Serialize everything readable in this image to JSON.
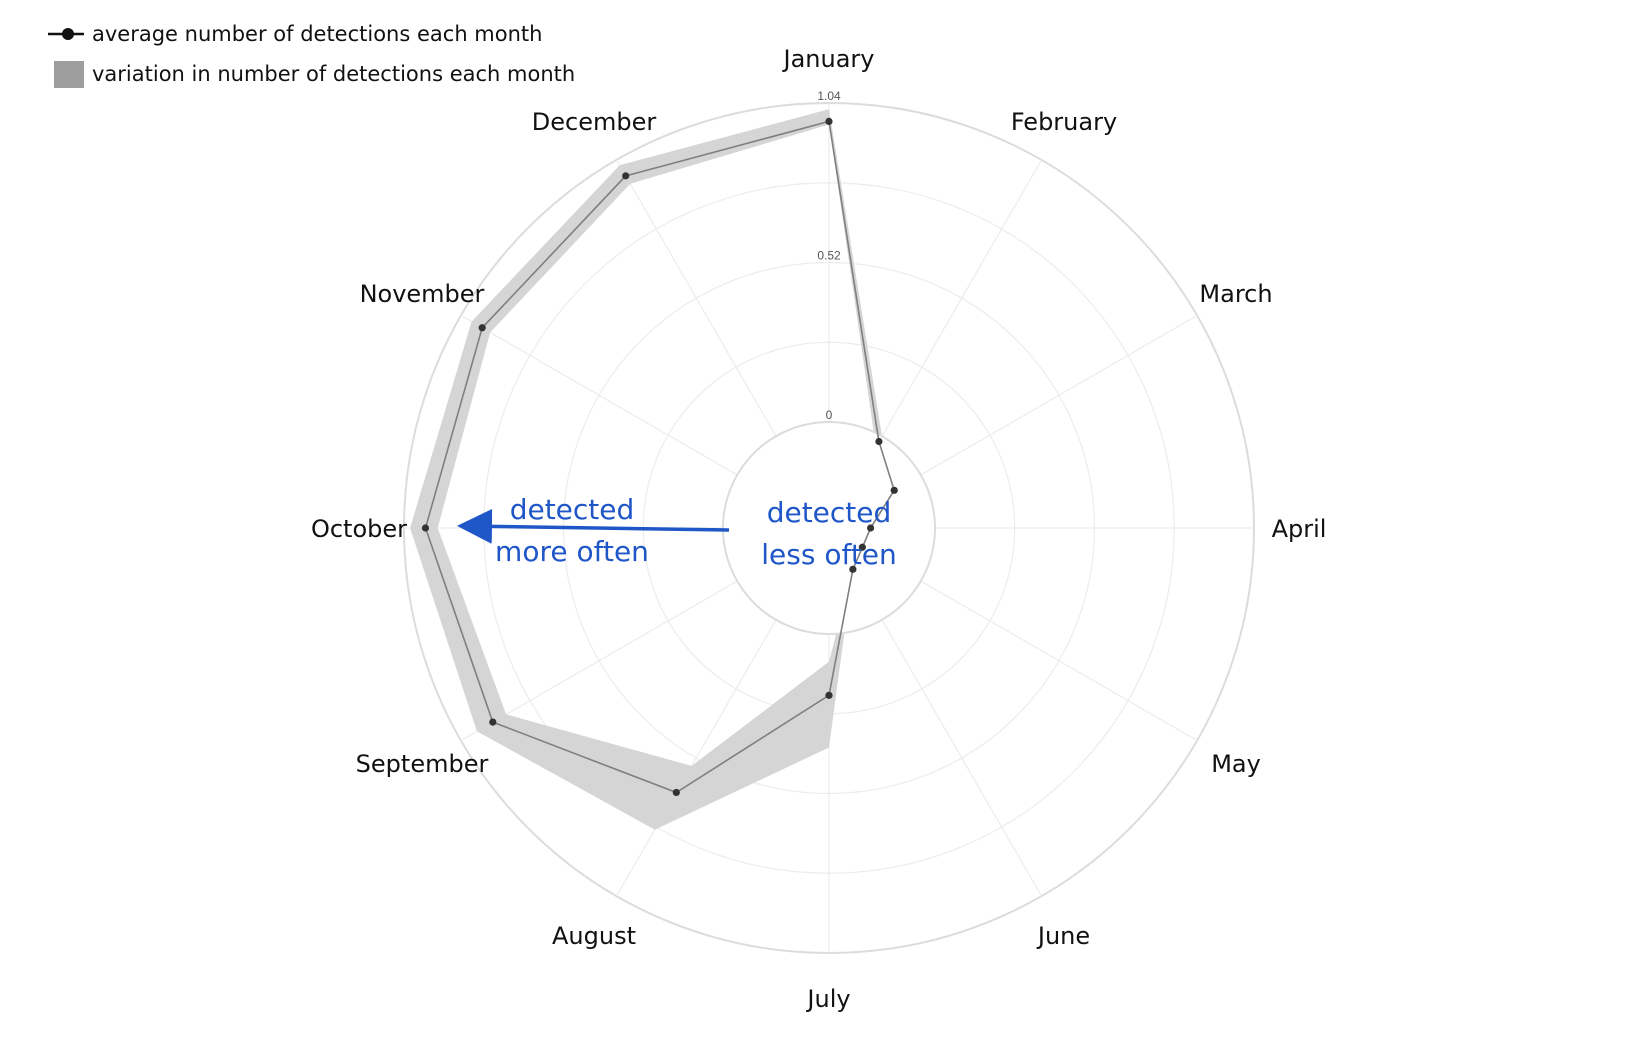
{
  "colors": {
    "line": "#7f7f7f",
    "point": "#333333",
    "band": "#d5d5d5",
    "legend_band": "#9e9e9e",
    "grid_outer": "#dcdcdc",
    "grid_inner": "#ececec",
    "annotation": "#1f56c8"
  },
  "legend": [
    {
      "label": "average number of detections each month",
      "icon": "line-with-dot-icon"
    },
    {
      "label": "variation in number of detections each month",
      "icon": "gray-square-icon"
    }
  ],
  "annotations": {
    "outer": [
      "detected",
      "more often"
    ],
    "inner": [
      "detected",
      "less often"
    ]
  },
  "chart_data": {
    "type": "radar",
    "axis": {
      "direction": "clockwise",
      "start": "top",
      "range": [
        -0.7,
        1.04
      ],
      "ticks": [
        0,
        0.52,
        1.04
      ],
      "tick_labels": [
        "0",
        "0.52",
        "1.04"
      ],
      "grid": true
    },
    "categories": [
      "January",
      "February",
      "March",
      "April",
      "May",
      "June",
      "July",
      "August",
      "September",
      "October",
      "November",
      "December"
    ],
    "series": [
      {
        "name": "average number of detections each month",
        "values": [
          0.98,
          -0.02,
          -0.1,
          -0.21,
          -0.22,
          -0.19,
          0.2,
          0.65,
          0.92,
          0.97,
          0.96,
          0.98
        ],
        "lower": [
          0.97,
          -0.04,
          -0.13,
          -0.25,
          -0.28,
          -0.19,
          0.09,
          0.55,
          0.87,
          0.93,
          0.93,
          0.95
        ],
        "upper": [
          1.02,
          0.0,
          -0.07,
          -0.15,
          -0.12,
          -0.19,
          0.37,
          0.79,
          0.98,
          1.02,
          1.0,
          1.02
        ]
      }
    ]
  }
}
